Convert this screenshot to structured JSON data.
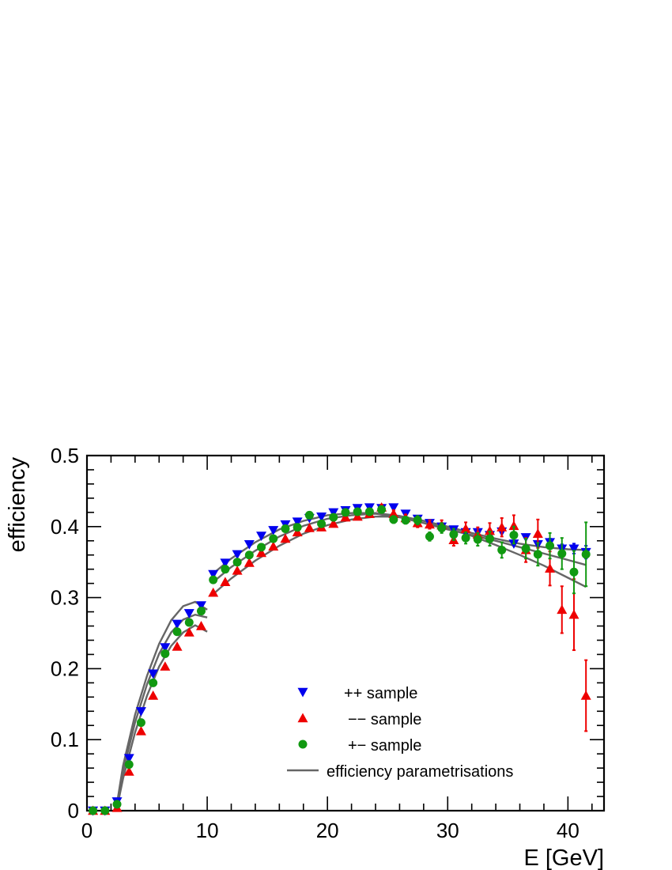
{
  "chart_data": {
    "type": "scatter",
    "title": "",
    "xlabel": "E [GeV]",
    "ylabel": "efficiency",
    "xlim": [
      0,
      43
    ],
    "ylim": [
      0,
      0.5
    ],
    "x_ticks": [
      "0",
      "10",
      "20",
      "30",
      "40"
    ],
    "y_ticks": [
      "0",
      "0.1",
      "0.2",
      "0.3",
      "0.4",
      "0.5"
    ],
    "legend_position": "bottom-center",
    "legend": [
      {
        "label": "++ sample",
        "marker": "triangle-down",
        "color": "#0000ee"
      },
      {
        "label": "−− sample",
        "marker": "triangle-up",
        "color": "#ee0000"
      },
      {
        "label": "+− sample",
        "marker": "circle",
        "color": "#119911"
      },
      {
        "label": "efficiency parametrisations",
        "marker": "line",
        "color": "#666666"
      }
    ],
    "series": [
      {
        "name": "++ sample",
        "marker": "triangle-down",
        "color": "#0000ee",
        "x": [
          0.5,
          1.5,
          2.5,
          3.5,
          4.5,
          5.5,
          6.5,
          7.5,
          8.5,
          9.5,
          10.5,
          11.5,
          12.5,
          13.5,
          14.5,
          15.5,
          16.5,
          17.5,
          18.5,
          19.5,
          20.5,
          21.5,
          22.5,
          23.5,
          24.5,
          25.5,
          26.5,
          27.5,
          28.5,
          29.5,
          30.5,
          31.5,
          32.5,
          33.5,
          34.5,
          35.5,
          36.5,
          37.5,
          38.5,
          39.5,
          40.5,
          41.5
        ],
        "y": [
          0,
          0,
          0.013,
          0.074,
          0.14,
          0.193,
          0.23,
          0.263,
          0.278,
          0.289,
          0.333,
          0.349,
          0.361,
          0.375,
          0.387,
          0.395,
          0.403,
          0.407,
          0.412,
          0.414,
          0.42,
          0.423,
          0.426,
          0.427,
          0.426,
          0.427,
          0.418,
          0.411,
          0.405,
          0.4,
          0.396,
          0.392,
          0.392,
          0.388,
          0.393,
          0.376,
          0.385,
          0.375,
          0.378,
          0.369,
          0.369,
          0.364
        ],
        "err": [
          0,
          0,
          0,
          0,
          0,
          0,
          0,
          0,
          0,
          0,
          0,
          0,
          0,
          0,
          0,
          0,
          0,
          0,
          0,
          0,
          0,
          0,
          0,
          0,
          0,
          0,
          0,
          0,
          0,
          0,
          0,
          0,
          0,
          0,
          0,
          0,
          0,
          0,
          0.005,
          0.006,
          0.007,
          0.009
        ]
      },
      {
        "name": "−− sample",
        "marker": "triangle-up",
        "color": "#ee0000",
        "x": [
          0.5,
          1.5,
          2.5,
          3.5,
          4.5,
          5.5,
          6.5,
          7.5,
          8.5,
          9.5,
          10.5,
          11.5,
          12.5,
          13.5,
          14.5,
          15.5,
          16.5,
          17.5,
          18.5,
          19.5,
          20.5,
          21.5,
          22.5,
          23.5,
          24.5,
          25.5,
          26.5,
          27.5,
          28.5,
          29.5,
          30.5,
          31.5,
          32.5,
          33.5,
          34.5,
          35.5,
          36.5,
          37.5,
          38.5,
          39.5,
          40.5,
          41.5
        ],
        "y": [
          0,
          0,
          0.004,
          0.055,
          0.112,
          0.162,
          0.203,
          0.231,
          0.251,
          0.26,
          0.307,
          0.322,
          0.338,
          0.349,
          0.363,
          0.372,
          0.383,
          0.392,
          0.398,
          0.399,
          0.404,
          0.413,
          0.414,
          0.418,
          0.427,
          0.418,
          0.412,
          0.405,
          0.403,
          0.402,
          0.381,
          0.397,
          0.389,
          0.394,
          0.399,
          0.401,
          0.367,
          0.39,
          0.341,
          0.283,
          0.276,
          0.162
        ],
        "err": [
          0,
          0,
          0,
          0,
          0,
          0,
          0,
          0,
          0,
          0,
          0,
          0,
          0,
          0,
          0,
          0,
          0,
          0,
          0,
          0,
          0,
          0,
          0,
          0,
          0.004,
          0.005,
          0.005,
          0.006,
          0.006,
          0.007,
          0.008,
          0.009,
          0.01,
          0.011,
          0.013,
          0.015,
          0.017,
          0.02,
          0.024,
          0.033,
          0.05,
          0.05
        ]
      },
      {
        "name": "+− sample",
        "marker": "circle",
        "color": "#119911",
        "x": [
          0.5,
          1.5,
          2.5,
          3.5,
          4.5,
          5.5,
          6.5,
          7.5,
          8.5,
          9.5,
          10.5,
          11.5,
          12.5,
          13.5,
          14.5,
          15.5,
          16.5,
          17.5,
          18.5,
          19.5,
          20.5,
          21.5,
          22.5,
          23.5,
          24.5,
          25.5,
          26.5,
          27.5,
          28.5,
          29.5,
          30.5,
          31.5,
          32.5,
          33.5,
          34.5,
          35.5,
          36.5,
          37.5,
          38.5,
          39.5,
          40.5,
          41.5
        ],
        "y": [
          0,
          0,
          0.009,
          0.065,
          0.124,
          0.18,
          0.221,
          0.252,
          0.265,
          0.281,
          0.325,
          0.34,
          0.35,
          0.36,
          0.371,
          0.383,
          0.397,
          0.399,
          0.416,
          0.404,
          0.413,
          0.42,
          0.421,
          0.421,
          0.424,
          0.41,
          0.409,
          0.409,
          0.386,
          0.398,
          0.389,
          0.384,
          0.382,
          0.383,
          0.367,
          0.388,
          0.369,
          0.361,
          0.373,
          0.362,
          0.336,
          0.361
        ],
        "err": [
          0,
          0,
          0,
          0,
          0,
          0,
          0,
          0,
          0,
          0,
          0,
          0,
          0,
          0,
          0,
          0,
          0,
          0,
          0,
          0,
          0,
          0,
          0,
          0,
          0.004,
          0.005,
          0.005,
          0.006,
          0.006,
          0.007,
          0.008,
          0.008,
          0.009,
          0.01,
          0.011,
          0.012,
          0.014,
          0.016,
          0.018,
          0.022,
          0.03,
          0.045
        ]
      }
    ],
    "fit_curves": [
      {
        "name": "efficiency parametrisation ++ (low E)",
        "color": "#666666",
        "x": [
          2.5,
          3,
          4,
          5,
          6,
          7,
          8,
          9,
          10
        ],
        "y": [
          0.01,
          0.063,
          0.135,
          0.19,
          0.235,
          0.268,
          0.288,
          0.294,
          0.283
        ]
      },
      {
        "name": "efficiency parametrisation +− (low E)",
        "color": "#666666",
        "x": [
          2.5,
          3,
          4,
          5,
          6,
          7,
          8,
          9,
          10
        ],
        "y": [
          0.007,
          0.055,
          0.124,
          0.178,
          0.221,
          0.251,
          0.269,
          0.276,
          0.272
        ]
      },
      {
        "name": "efficiency parametrisation −− (low E)",
        "color": "#666666",
        "x": [
          2.5,
          3,
          4,
          5,
          6,
          7,
          8,
          9,
          10
        ],
        "y": [
          0.004,
          0.045,
          0.11,
          0.162,
          0.203,
          0.232,
          0.251,
          0.261,
          0.252
        ]
      },
      {
        "name": "efficiency parametrisation ++ (high E)",
        "color": "#666666",
        "x": [
          10.5,
          12,
          14,
          16,
          18,
          20,
          22,
          24,
          26,
          28,
          30,
          32,
          34,
          36,
          38,
          40,
          41.5
        ],
        "y": [
          0.334,
          0.355,
          0.378,
          0.396,
          0.408,
          0.416,
          0.419,
          0.419,
          0.415,
          0.408,
          0.4,
          0.391,
          0.383,
          0.376,
          0.371,
          0.368,
          0.367
        ]
      },
      {
        "name": "efficiency parametrisation +− (high E)",
        "color": "#666666",
        "x": [
          10.5,
          12,
          14,
          16,
          18,
          20,
          22,
          24,
          26,
          28,
          30,
          32,
          34,
          36,
          38,
          40,
          41.5
        ],
        "y": [
          0.322,
          0.343,
          0.366,
          0.386,
          0.401,
          0.411,
          0.416,
          0.418,
          0.413,
          0.405,
          0.396,
          0.388,
          0.38,
          0.371,
          0.362,
          0.353,
          0.346
        ]
      },
      {
        "name": "efficiency parametrisation −− (high E)",
        "color": "#666666",
        "x": [
          10.5,
          12,
          14,
          16,
          18,
          20,
          22,
          24,
          26,
          28,
          30,
          32,
          34,
          36,
          38,
          40,
          41.5
        ],
        "y": [
          0.305,
          0.327,
          0.352,
          0.373,
          0.39,
          0.402,
          0.41,
          0.414,
          0.414,
          0.408,
          0.398,
          0.387,
          0.374,
          0.36,
          0.345,
          0.328,
          0.315
        ]
      }
    ]
  }
}
